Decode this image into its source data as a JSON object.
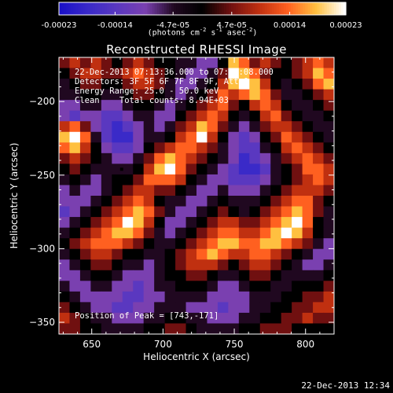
{
  "colorbar": {
    "tick_labels": [
      "-0.00023",
      "-0.00014",
      "-4.7e-05",
      "4.7e-05",
      "0.00014",
      "0.00023"
    ],
    "tick_values": [
      -0.00023,
      -0.00014,
      -4.7e-05,
      4.7e-05,
      0.00014,
      0.00023
    ],
    "range": [
      -0.00023,
      0.00023
    ],
    "units_text": {
      "lead": "(photons cm",
      "e1": "-2",
      "mid1": " s",
      "e2": "-1",
      "mid2": " asec",
      "e3": "-2",
      "tail": ")"
    },
    "colormap": [
      "#1a10c8",
      "#3a2ac8",
      "#5a38c0",
      "#7a40b0",
      "#200820",
      "#000000",
      "#701010",
      "#c03010",
      "#ff6020",
      "#ffc040",
      "#ffffff"
    ]
  },
  "title": "Reconstructed RHESSI Image",
  "info": {
    "line1": "22-Dec-2013 07:13:36.000 to 07:18:08.000",
    "line2": "Detectors: 3F 5F 6F 7F 8F 9F, Att 0",
    "line3": "Energy Range: 25.0 - 50.0 keV",
    "line4": "Clean    Total counts: 8.94E+03",
    "peak": "Position of Peak = [743,-171]"
  },
  "timestamp": "22-Dec-2013 12:34",
  "chart_data": {
    "type": "heatmap",
    "title": "Reconstructed RHESSI Image",
    "xlabel": "Heliocentric X (arcsec)",
    "ylabel": "Heliocentric Y (arcsec)",
    "xlim": [
      627,
      820
    ],
    "ylim": [
      -358,
      -170
    ],
    "x_ticks": [
      650,
      700,
      750,
      800
    ],
    "y_ticks": [
      -200,
      -250,
      -300,
      -350
    ],
    "x_tick_labels": [
      "650",
      "700",
      "750",
      "800"
    ],
    "y_tick_labels": [
      "−200",
      "−250",
      "−300",
      "−350"
    ],
    "peak_position": [
      743,
      -171
    ],
    "marker": [
      671,
      -246
    ],
    "grid": [
      [
        1,
        2,
        1,
        2,
        1,
        0,
        1,
        2,
        1,
        0,
        0,
        -1,
        -1,
        -2,
        -2,
        0,
        4,
        3,
        1,
        2,
        1,
        0,
        1,
        2,
        3,
        2
      ],
      [
        0,
        1,
        2,
        2,
        1,
        1,
        2,
        3,
        2,
        1,
        0,
        -1,
        -2,
        -2,
        -1,
        1,
        5,
        4,
        3,
        1,
        0,
        0,
        1,
        2,
        4,
        3
      ],
      [
        -1,
        0,
        1,
        1,
        0,
        0,
        1,
        2,
        2,
        1,
        -1,
        -2,
        -2,
        -1,
        0,
        2,
        4,
        5,
        4,
        2,
        0,
        -1,
        0,
        1,
        3,
        4
      ],
      [
        -1,
        -1,
        0,
        0,
        -1,
        -1,
        0,
        1,
        1,
        0,
        -1,
        -2,
        -1,
        0,
        1,
        3,
        2,
        3,
        4,
        3,
        1,
        -1,
        -1,
        0,
        1,
        2
      ],
      [
        -2,
        -2,
        -1,
        -1,
        -2,
        -2,
        -1,
        0,
        0,
        -1,
        -2,
        -1,
        0,
        1,
        2,
        3,
        1,
        0,
        2,
        3,
        2,
        0,
        -1,
        -1,
        0,
        1
      ],
      [
        -2,
        -3,
        -2,
        -2,
        -3,
        -3,
        -2,
        -1,
        -1,
        -2,
        -2,
        0,
        1,
        2,
        3,
        2,
        0,
        -1,
        0,
        2,
        3,
        1,
        0,
        -1,
        -1,
        0
      ],
      [
        2,
        3,
        1,
        -2,
        -3,
        -4,
        -3,
        -2,
        -1,
        -2,
        -1,
        1,
        2,
        4,
        3,
        1,
        -1,
        -2,
        -1,
        1,
        2,
        2,
        1,
        0,
        -1,
        -1
      ],
      [
        4,
        5,
        3,
        -1,
        -3,
        -4,
        -4,
        -2,
        -1,
        -1,
        0,
        2,
        3,
        5,
        2,
        0,
        -2,
        -3,
        -2,
        0,
        1,
        3,
        2,
        1,
        0,
        -1
      ],
      [
        3,
        4,
        2,
        0,
        -2,
        -3,
        -3,
        -2,
        0,
        1,
        2,
        3,
        3,
        2,
        1,
        -1,
        -2,
        -3,
        -3,
        -1,
        0,
        2,
        3,
        2,
        1,
        0
      ],
      [
        1,
        2,
        1,
        0,
        -1,
        -2,
        -2,
        -1,
        1,
        3,
        4,
        3,
        2,
        1,
        0,
        -1,
        -2,
        -4,
        -3,
        -2,
        -1,
        1,
        2,
        3,
        2,
        1
      ],
      [
        0,
        1,
        0,
        -1,
        -1,
        -1,
        -1,
        0,
        2,
        4,
        5,
        3,
        1,
        0,
        -1,
        -2,
        -3,
        -4,
        -4,
        -3,
        -1,
        0,
        1,
        3,
        3,
        2
      ],
      [
        -1,
        0,
        -1,
        -2,
        -1,
        0,
        0,
        1,
        3,
        3,
        3,
        2,
        0,
        -1,
        -2,
        -2,
        -3,
        -3,
        -3,
        -2,
        -1,
        0,
        1,
        2,
        3,
        2
      ],
      [
        -2,
        -1,
        -2,
        -2,
        -1,
        0,
        1,
        2,
        2,
        1,
        1,
        0,
        -1,
        -2,
        -2,
        -1,
        -2,
        -2,
        -2,
        -1,
        0,
        1,
        2,
        2,
        2,
        1
      ],
      [
        -2,
        -2,
        -2,
        -1,
        0,
        1,
        2,
        3,
        2,
        0,
        -1,
        -1,
        -2,
        -2,
        -1,
        0,
        -1,
        -1,
        -1,
        0,
        1,
        2,
        3,
        3,
        1,
        0
      ],
      [
        -3,
        -2,
        -1,
        0,
        1,
        2,
        3,
        4,
        3,
        1,
        -1,
        -2,
        -2,
        -1,
        0,
        1,
        0,
        -1,
        0,
        1,
        2,
        3,
        4,
        3,
        1,
        -1
      ],
      [
        -2,
        -1,
        0,
        1,
        2,
        3,
        5,
        4,
        2,
        0,
        -2,
        -2,
        -1,
        0,
        1,
        2,
        2,
        1,
        1,
        2,
        3,
        4,
        5,
        3,
        0,
        -1
      ],
      [
        -1,
        0,
        1,
        2,
        3,
        4,
        4,
        3,
        1,
        -1,
        -2,
        -1,
        0,
        1,
        2,
        3,
        3,
        2,
        2,
        3,
        4,
        5,
        4,
        2,
        0,
        -1
      ],
      [
        0,
        1,
        2,
        3,
        3,
        3,
        2,
        1,
        0,
        -1,
        -1,
        0,
        1,
        2,
        3,
        4,
        4,
        3,
        3,
        4,
        4,
        3,
        2,
        1,
        -1,
        -2
      ],
      [
        -1,
        0,
        1,
        2,
        2,
        1,
        0,
        0,
        -1,
        -1,
        0,
        1,
        2,
        3,
        4,
        3,
        2,
        2,
        3,
        3,
        2,
        1,
        0,
        -1,
        -2,
        -2
      ],
      [
        -2,
        -1,
        0,
        1,
        1,
        0,
        -1,
        -1,
        -2,
        -1,
        0,
        1,
        2,
        2,
        2,
        1,
        0,
        1,
        2,
        2,
        1,
        0,
        -1,
        -2,
        -2,
        -1
      ],
      [
        -2,
        -2,
        -1,
        0,
        0,
        -1,
        -2,
        -2,
        -2,
        -1,
        0,
        0,
        1,
        1,
        0,
        -1,
        -1,
        0,
        1,
        1,
        0,
        -1,
        -1,
        -1,
        -1,
        0
      ],
      [
        -1,
        -2,
        -2,
        -1,
        -1,
        -2,
        -2,
        -3,
        -2,
        -1,
        -1,
        0,
        0,
        0,
        -1,
        -2,
        -2,
        -1,
        0,
        0,
        -1,
        -1,
        0,
        0,
        0,
        1
      ],
      [
        0,
        -1,
        -2,
        -2,
        -2,
        -2,
        -3,
        -3,
        -2,
        -2,
        -1,
        -1,
        -1,
        -1,
        -2,
        -2,
        -2,
        -2,
        -1,
        -1,
        -1,
        0,
        0,
        1,
        1,
        2
      ],
      [
        1,
        0,
        -1,
        -2,
        -2,
        -3,
        -3,
        -2,
        -2,
        -1,
        -1,
        -1,
        -2,
        -2,
        -2,
        -3,
        -2,
        -2,
        -1,
        -1,
        0,
        0,
        1,
        1,
        2,
        2
      ],
      [
        2,
        1,
        0,
        -1,
        -1,
        -2,
        -2,
        -2,
        -1,
        -1,
        0,
        0,
        -1,
        -1,
        -2,
        -2,
        -2,
        -1,
        -1,
        0,
        0,
        1,
        1,
        2,
        1,
        1
      ],
      [
        1,
        1,
        0,
        0,
        -1,
        -1,
        -1,
        -1,
        0,
        0,
        1,
        1,
        0,
        -1,
        -1,
        -1,
        -1,
        0,
        0,
        1,
        1,
        1,
        0,
        0,
        0,
        0
      ]
    ]
  }
}
